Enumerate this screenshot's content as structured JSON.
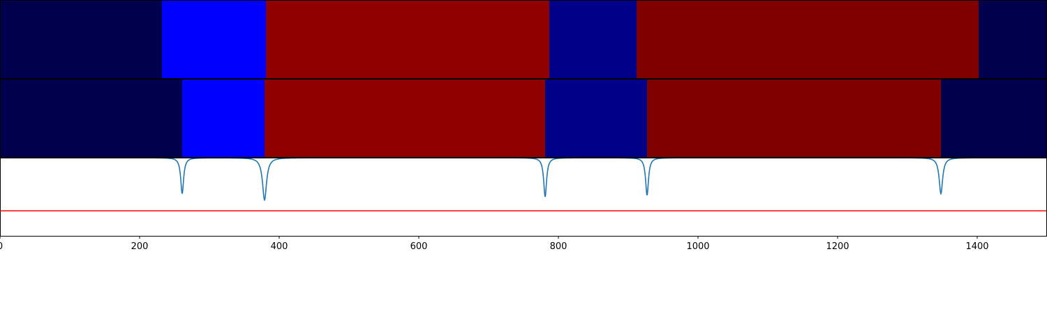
{
  "chart_data": [
    {
      "type": "heatmap",
      "segments": [
        {
          "start": 0,
          "end": 232,
          "color": "#00004c"
        },
        {
          "start": 232,
          "end": 381,
          "color": "#0000ff"
        },
        {
          "start": 381,
          "end": 787,
          "color": "#900000"
        },
        {
          "start": 787,
          "end": 912,
          "color": "#000088"
        },
        {
          "start": 912,
          "end": 1402,
          "color": "#800000"
        },
        {
          "start": 1402,
          "end": 1500,
          "color": "#00004c"
        }
      ]
    },
    {
      "type": "heatmap",
      "segments": [
        {
          "start": 0,
          "end": 261,
          "color": "#00004c"
        },
        {
          "start": 261,
          "end": 379,
          "color": "#0000ff"
        },
        {
          "start": 379,
          "end": 781,
          "color": "#900000"
        },
        {
          "start": 781,
          "end": 927,
          "color": "#000088"
        },
        {
          "start": 927,
          "end": 1348,
          "color": "#800000"
        },
        {
          "start": 1348,
          "end": 1500,
          "color": "#00004c"
        }
      ]
    },
    {
      "type": "line",
      "xlim": [
        0,
        1500
      ],
      "ylim": [
        0,
        1
      ],
      "series": [
        {
          "color": "#1f77b4",
          "baseline": 1.0,
          "dips": [
            {
              "x": 261,
              "depth": 0.46,
              "width": 2.5
            },
            {
              "x": 379,
              "depth": 0.54,
              "width": 3.5
            },
            {
              "x": 781,
              "depth": 0.5,
              "width": 2.5
            },
            {
              "x": 927,
              "depth": 0.48,
              "width": 2.5
            },
            {
              "x": 1348,
              "depth": 0.46,
              "width": 3.0
            }
          ]
        }
      ],
      "threshold": {
        "y": 0.32,
        "color": "#ff0000"
      },
      "xticks": [
        0,
        200,
        400,
        600,
        800,
        1000,
        1200,
        1400
      ],
      "xticklabels": [
        "0",
        "200",
        "400",
        "600",
        "800",
        "1000",
        "1200",
        "1400"
      ]
    }
  ]
}
